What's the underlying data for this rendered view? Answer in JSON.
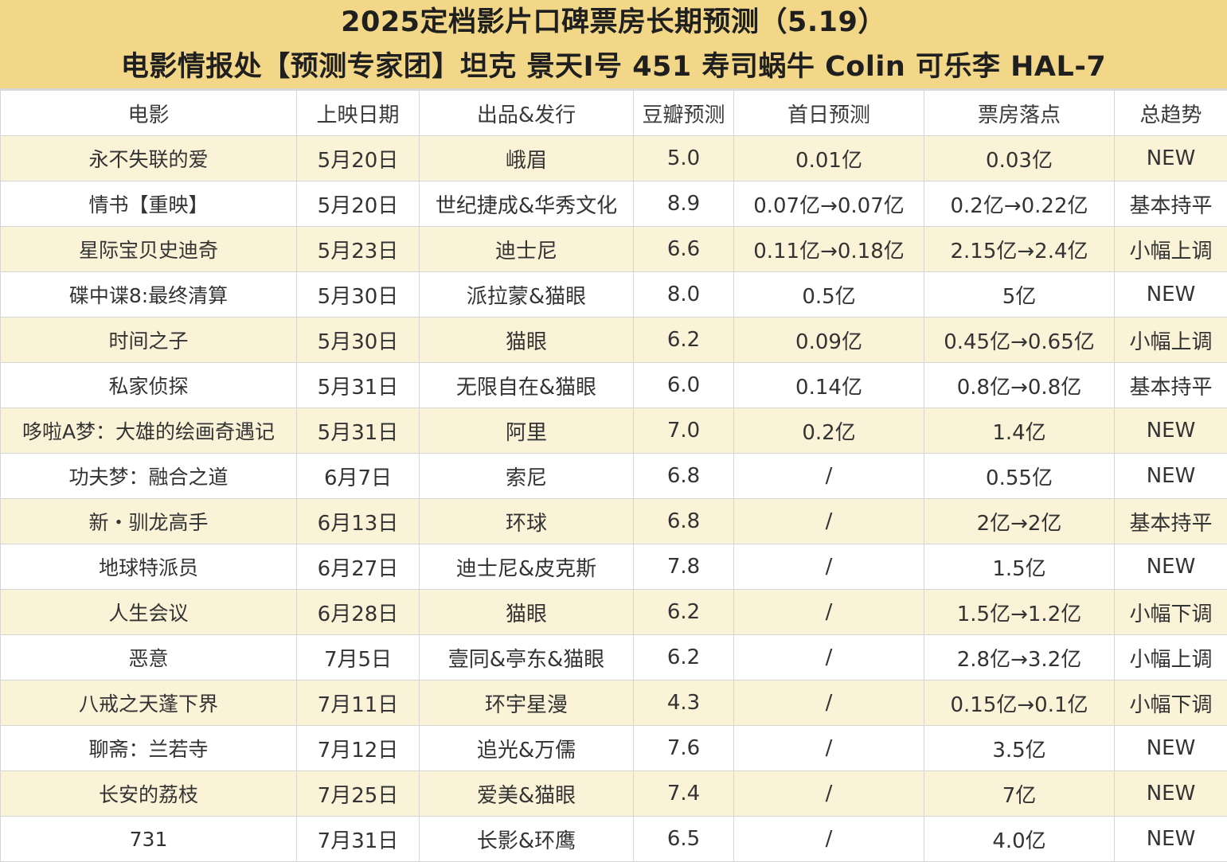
{
  "header": {
    "title": "2025定档影片口碑票房长期预测（5.19）",
    "subtitle": "电影情报处【预测专家团】坦克 景天I号 451 寿司蜗牛 Colin 可乐李 HAL-7"
  },
  "table": {
    "columns": [
      "电影",
      "上映日期",
      "出品&发行",
      "豆瓣预测",
      "首日预测",
      "票房落点",
      "总趋势"
    ],
    "rows": [
      {
        "movie": "永不失联的爱",
        "date": "5月20日",
        "distributor": "峨眉",
        "douban": "5.0",
        "first_day": "0.01亿",
        "box_office": "0.03亿",
        "trend": "NEW"
      },
      {
        "movie": "情书【重映】",
        "date": "5月20日",
        "distributor": "世纪捷成&华秀文化",
        "douban": "8.9",
        "first_day": "0.07亿→0.07亿",
        "box_office": "0.2亿→0.22亿",
        "trend": "基本持平"
      },
      {
        "movie": "星际宝贝史迪奇",
        "date": "5月23日",
        "distributor": "迪士尼",
        "douban": "6.6",
        "first_day": "0.11亿→0.18亿",
        "box_office": "2.15亿→2.4亿",
        "trend": "小幅上调"
      },
      {
        "movie": "碟中谍8:最终清算",
        "date": "5月30日",
        "distributor": "派拉蒙&猫眼",
        "douban": "8.0",
        "first_day": "0.5亿",
        "box_office": "5亿",
        "trend": "NEW"
      },
      {
        "movie": "时间之子",
        "date": "5月30日",
        "distributor": "猫眼",
        "douban": "6.2",
        "first_day": "0.09亿",
        "box_office": "0.45亿→0.65亿",
        "trend": "小幅上调"
      },
      {
        "movie": "私家侦探",
        "date": "5月31日",
        "distributor": "无限自在&猫眼",
        "douban": "6.0",
        "first_day": "0.14亿",
        "box_office": "0.8亿→0.8亿",
        "trend": "基本持平"
      },
      {
        "movie": "哆啦A梦：大雄的绘画奇遇记",
        "date": "5月31日",
        "distributor": "阿里",
        "douban": "7.0",
        "first_day": "0.2亿",
        "box_office": "1.4亿",
        "trend": "NEW"
      },
      {
        "movie": "功夫梦：融合之道",
        "date": "6月7日",
        "distributor": "索尼",
        "douban": "6.8",
        "first_day": "/",
        "box_office": "0.55亿",
        "trend": "NEW"
      },
      {
        "movie": "新・驯龙高手",
        "date": "6月13日",
        "distributor": "环球",
        "douban": "6.8",
        "first_day": "/",
        "box_office": "2亿→2亿",
        "trend": "基本持平"
      },
      {
        "movie": "地球特派员",
        "date": "6月27日",
        "distributor": "迪士尼&皮克斯",
        "douban": "7.8",
        "first_day": "/",
        "box_office": "1.5亿",
        "trend": "NEW"
      },
      {
        "movie": "人生会议",
        "date": "6月28日",
        "distributor": "猫眼",
        "douban": "6.2",
        "first_day": "/",
        "box_office": "1.5亿→1.2亿",
        "trend": "小幅下调"
      },
      {
        "movie": "恶意",
        "date": "7月5日",
        "distributor": "壹同&亭东&猫眼",
        "douban": "6.2",
        "first_day": "/",
        "box_office": "2.8亿→3.2亿",
        "trend": "小幅上调"
      },
      {
        "movie": "八戒之天蓬下界",
        "date": "7月11日",
        "distributor": "环宇星漫",
        "douban": "4.3",
        "first_day": "/",
        "box_office": "0.15亿→0.1亿",
        "trend": "小幅下调"
      },
      {
        "movie": "聊斋：兰若寺",
        "date": "7月12日",
        "distributor": "追光&万儒",
        "douban": "7.6",
        "first_day": "/",
        "box_office": "3.5亿",
        "trend": "NEW"
      },
      {
        "movie": "长安的荔枝",
        "date": "7月25日",
        "distributor": "爱美&猫眼",
        "douban": "7.4",
        "first_day": "/",
        "box_office": "7亿",
        "trend": "NEW"
      },
      {
        "movie": "731",
        "date": "7月31日",
        "distributor": "长影&环鹰",
        "douban": "6.5",
        "first_day": "/",
        "box_office": "4.0亿",
        "trend": "NEW"
      }
    ]
  }
}
